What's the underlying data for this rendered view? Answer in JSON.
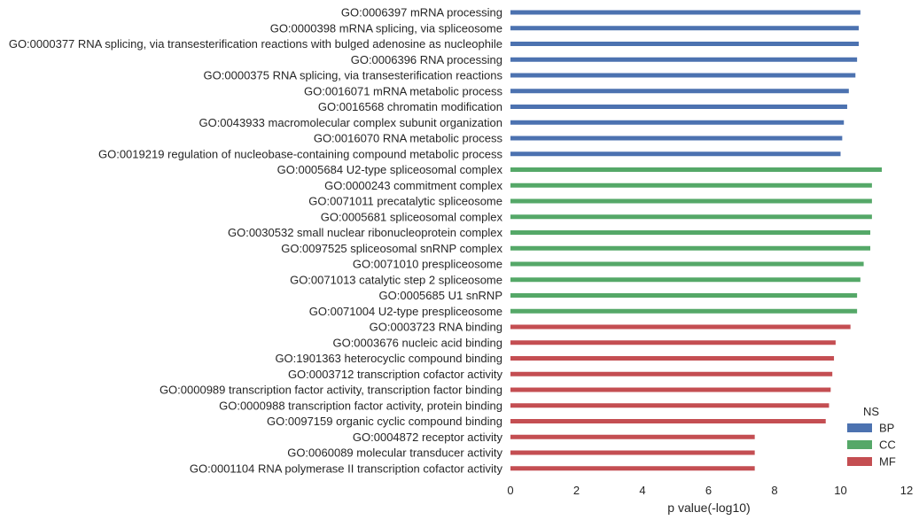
{
  "chart_data": {
    "type": "bar",
    "orientation": "horizontal",
    "xlabel": "p value(-log10)",
    "ylabel": "",
    "xlim": [
      0,
      12
    ],
    "xticks": [
      0,
      2,
      4,
      6,
      8,
      10,
      12
    ],
    "grid": false,
    "legend": {
      "title": "NS",
      "placement": "bottom-right",
      "entries": [
        {
          "name": "BP",
          "color": "#4c72b0"
        },
        {
          "name": "CC",
          "color": "#55a868"
        },
        {
          "name": "MF",
          "color": "#c44e52"
        }
      ]
    },
    "bars": [
      {
        "label": "GO:0006397 mRNA processing",
        "value": 10.6,
        "ns": "BP"
      },
      {
        "label": "GO:0000398 mRNA splicing, via spliceosome",
        "value": 10.55,
        "ns": "BP"
      },
      {
        "label": "GO:0000377 RNA splicing, via transesterification reactions with bulged adenosine as nucleophile",
        "value": 10.55,
        "ns": "BP"
      },
      {
        "label": "GO:0006396 RNA processing",
        "value": 10.5,
        "ns": "BP"
      },
      {
        "label": "GO:0000375 RNA splicing, via transesterification reactions",
        "value": 10.45,
        "ns": "BP"
      },
      {
        "label": "GO:0016071 mRNA metabolic process",
        "value": 10.25,
        "ns": "BP"
      },
      {
        "label": "GO:0016568 chromatin modification",
        "value": 10.2,
        "ns": "BP"
      },
      {
        "label": "GO:0043933 macromolecular complex subunit organization",
        "value": 10.1,
        "ns": "BP"
      },
      {
        "label": "GO:0016070 RNA metabolic process",
        "value": 10.05,
        "ns": "BP"
      },
      {
        "label": "GO:0019219 regulation of nucleobase-containing compound metabolic process",
        "value": 10.0,
        "ns": "BP"
      },
      {
        "label": "GO:0005684 U2-type spliceosomal complex",
        "value": 11.25,
        "ns": "CC"
      },
      {
        "label": "GO:0000243 commitment complex",
        "value": 10.95,
        "ns": "CC"
      },
      {
        "label": "GO:0071011 precatalytic spliceosome",
        "value": 10.95,
        "ns": "CC"
      },
      {
        "label": "GO:0005681 spliceosomal complex",
        "value": 10.95,
        "ns": "CC"
      },
      {
        "label": "GO:0030532 small nuclear ribonucleoprotein complex",
        "value": 10.9,
        "ns": "CC"
      },
      {
        "label": "GO:0097525 spliceosomal snRNP complex",
        "value": 10.9,
        "ns": "CC"
      },
      {
        "label": "GO:0071010 prespliceosome",
        "value": 10.7,
        "ns": "CC"
      },
      {
        "label": "GO:0071013 catalytic step 2 spliceosome",
        "value": 10.6,
        "ns": "CC"
      },
      {
        "label": "GO:0005685 U1 snRNP",
        "value": 10.5,
        "ns": "CC"
      },
      {
        "label": "GO:0071004 U2-type prespliceosome",
        "value": 10.5,
        "ns": "CC"
      },
      {
        "label": "GO:0003723 RNA binding",
        "value": 10.3,
        "ns": "MF"
      },
      {
        "label": "GO:0003676 nucleic acid binding",
        "value": 9.85,
        "ns": "MF"
      },
      {
        "label": "GO:1901363 heterocyclic compound binding",
        "value": 9.8,
        "ns": "MF"
      },
      {
        "label": "GO:0003712 transcription cofactor activity",
        "value": 9.75,
        "ns": "MF"
      },
      {
        "label": "GO:0000989 transcription factor activity, transcription factor binding",
        "value": 9.7,
        "ns": "MF"
      },
      {
        "label": "GO:0000988 transcription factor activity, protein binding",
        "value": 9.65,
        "ns": "MF"
      },
      {
        "label": "GO:0097159 organic cyclic compound binding",
        "value": 9.55,
        "ns": "MF"
      },
      {
        "label": "GO:0004872 receptor activity",
        "value": 7.4,
        "ns": "MF"
      },
      {
        "label": "GO:0060089 molecular transducer activity",
        "value": 7.4,
        "ns": "MF"
      },
      {
        "label": "GO:0001104 RNA polymerase II transcription cofactor activity",
        "value": 7.4,
        "ns": "MF"
      }
    ]
  }
}
